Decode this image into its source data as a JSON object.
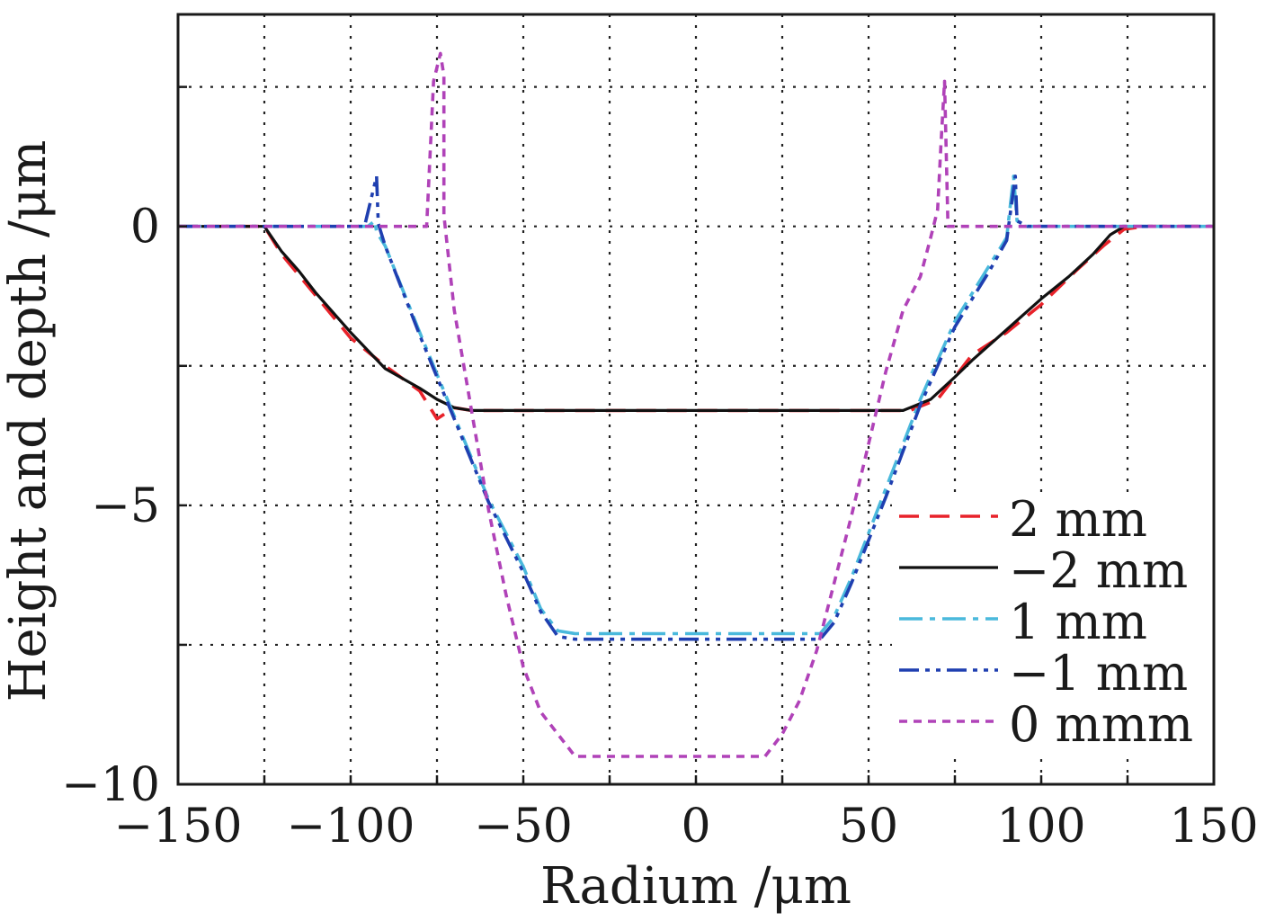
{
  "chart_data": {
    "type": "line",
    "title": "",
    "xlabel": "Radium /μm",
    "ylabel": "Height and depth /μm",
    "xlim": [
      -150,
      150
    ],
    "ylim": [
      -10,
      3.8
    ],
    "xticks": [
      -150,
      -100,
      -50,
      0,
      50,
      100,
      150
    ],
    "xtick_labels": [
      "−150",
      "−100",
      "−50",
      "0",
      "50",
      "100",
      "150"
    ],
    "yticks": [
      -10,
      -5,
      0
    ],
    "ytick_labels": [
      "−10",
      "−5",
      "0"
    ],
    "grid": true,
    "legend_position": "lower-right",
    "series": [
      {
        "name": "2 mm",
        "color": "#e8222a",
        "dash": "22 12",
        "points": [
          [
            -150,
            0
          ],
          [
            -130,
            0
          ],
          [
            -125,
            0
          ],
          [
            -120,
            -0.5
          ],
          [
            -110,
            -1.25
          ],
          [
            -100,
            -2.0
          ],
          [
            -90,
            -2.5
          ],
          [
            -80,
            -2.95
          ],
          [
            -75,
            -3.45
          ],
          [
            -70,
            -3.25
          ],
          [
            -65,
            -3.3
          ],
          [
            -50,
            -3.3
          ],
          [
            0,
            -3.3
          ],
          [
            50,
            -3.3
          ],
          [
            62,
            -3.3
          ],
          [
            70,
            -3.1
          ],
          [
            80,
            -2.3
          ],
          [
            90,
            -1.9
          ],
          [
            100,
            -1.4
          ],
          [
            110,
            -0.8
          ],
          [
            118,
            -0.35
          ],
          [
            124,
            -0.05
          ],
          [
            130,
            0
          ],
          [
            150,
            0
          ]
        ]
      },
      {
        "name": "−2 mm",
        "color": "#111111",
        "dash": "",
        "points": [
          [
            -150,
            0
          ],
          [
            -130,
            0
          ],
          [
            -125,
            0
          ],
          [
            -120,
            -0.45
          ],
          [
            -115,
            -0.8
          ],
          [
            -110,
            -1.2
          ],
          [
            -100,
            -1.9
          ],
          [
            -90,
            -2.55
          ],
          [
            -80,
            -2.9
          ],
          [
            -75,
            -3.1
          ],
          [
            -70,
            -3.25
          ],
          [
            -65,
            -3.3
          ],
          [
            -50,
            -3.3
          ],
          [
            0,
            -3.3
          ],
          [
            50,
            -3.3
          ],
          [
            60,
            -3.3
          ],
          [
            68,
            -3.1
          ],
          [
            75,
            -2.7
          ],
          [
            80,
            -2.4
          ],
          [
            90,
            -1.85
          ],
          [
            100,
            -1.3
          ],
          [
            108,
            -0.9
          ],
          [
            115,
            -0.5
          ],
          [
            120,
            -0.15
          ],
          [
            124,
            0
          ],
          [
            150,
            0
          ]
        ]
      },
      {
        "name": "1 mm",
        "color": "#4ab9dc",
        "dash": "26 8 6 8",
        "points": [
          [
            -150,
            0
          ],
          [
            -95,
            0
          ],
          [
            -93,
            0.1
          ],
          [
            -92.5,
            -0.1
          ],
          [
            -90,
            -0.35
          ],
          [
            -80,
            -1.9
          ],
          [
            -70,
            -3.4
          ],
          [
            -60,
            -4.9
          ],
          [
            -50,
            -6.1
          ],
          [
            -45,
            -6.85
          ],
          [
            -40,
            -7.25
          ],
          [
            -35,
            -7.3
          ],
          [
            0,
            -7.3
          ],
          [
            30,
            -7.3
          ],
          [
            36,
            -7.3
          ],
          [
            40,
            -7.0
          ],
          [
            45,
            -6.3
          ],
          [
            55,
            -4.7
          ],
          [
            65,
            -3.1
          ],
          [
            75,
            -1.7
          ],
          [
            85,
            -0.7
          ],
          [
            90,
            -0.2
          ],
          [
            92,
            0.9
          ],
          [
            93,
            0.1
          ],
          [
            95,
            0
          ],
          [
            150,
            0
          ]
        ]
      },
      {
        "name": "−1 mm",
        "color": "#1f3fb0",
        "dash": "22 7 5 7 5 7",
        "points": [
          [
            -150,
            0
          ],
          [
            -96,
            0
          ],
          [
            -92.5,
            0.9
          ],
          [
            -92,
            0.05
          ],
          [
            -90,
            -0.35
          ],
          [
            -80,
            -1.95
          ],
          [
            -70,
            -3.45
          ],
          [
            -60,
            -4.95
          ],
          [
            -50,
            -6.2
          ],
          [
            -45,
            -6.9
          ],
          [
            -40,
            -7.35
          ],
          [
            -35,
            -7.4
          ],
          [
            0,
            -7.4
          ],
          [
            36,
            -7.4
          ],
          [
            40,
            -7.1
          ],
          [
            45,
            -6.4
          ],
          [
            55,
            -4.85
          ],
          [
            65,
            -3.2
          ],
          [
            75,
            -1.8
          ],
          [
            85,
            -0.8
          ],
          [
            90,
            -0.25
          ],
          [
            92.5,
            0.9
          ],
          [
            93,
            0.1
          ],
          [
            96,
            0
          ],
          [
            150,
            0
          ]
        ]
      },
      {
        "name": "0 mmm",
        "color": "#b042b8",
        "dash": "9 7",
        "points": [
          [
            -150,
            0
          ],
          [
            -78,
            0
          ],
          [
            -76,
            2.6
          ],
          [
            -74,
            3.1
          ],
          [
            -73,
            2.7
          ],
          [
            -73,
            0.2
          ],
          [
            -70,
            -1.5
          ],
          [
            -65,
            -3.3
          ],
          [
            -60,
            -5.1
          ],
          [
            -55,
            -6.6
          ],
          [
            -50,
            -7.9
          ],
          [
            -45,
            -8.7
          ],
          [
            -40,
            -9.1
          ],
          [
            -35,
            -9.5
          ],
          [
            -25,
            -9.5
          ],
          [
            0,
            -9.5
          ],
          [
            20,
            -9.5
          ],
          [
            25,
            -9.1
          ],
          [
            30,
            -8.5
          ],
          [
            35,
            -7.6
          ],
          [
            40,
            -6.4
          ],
          [
            45,
            -5.2
          ],
          [
            50,
            -3.9
          ],
          [
            55,
            -2.6
          ],
          [
            60,
            -1.5
          ],
          [
            65,
            -0.9
          ],
          [
            68,
            -0.2
          ],
          [
            70,
            0.3
          ],
          [
            71,
            1.5
          ],
          [
            72,
            2.6
          ],
          [
            73,
            0
          ],
          [
            150,
            0
          ]
        ]
      }
    ]
  }
}
